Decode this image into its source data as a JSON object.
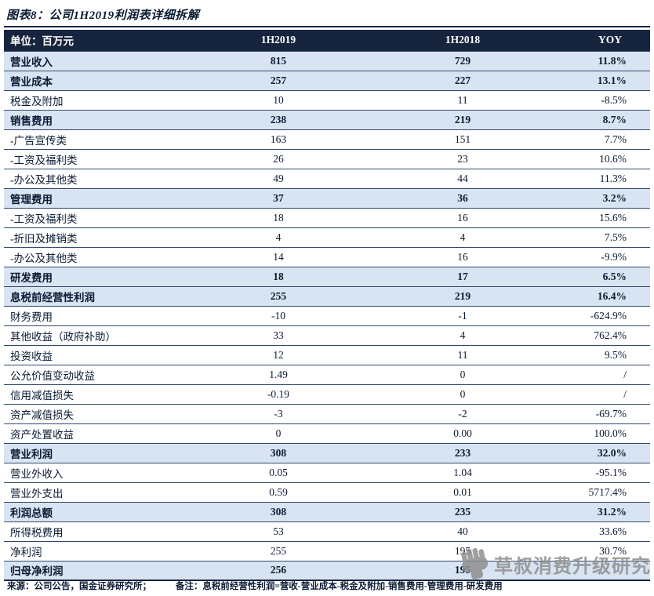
{
  "figure_title": "图表8：公司1H2019利润表详细拆解",
  "accent_colors": {
    "header_bg": "#16243E",
    "section_row_bg": "#D9E4F2",
    "border": "#31486E",
    "text": "#0A1A33",
    "watermark_gray": "#8F8F8F"
  },
  "chart_data": {
    "type": "table",
    "title": "图表8：公司1H2019利润表详细拆解",
    "columns": [
      "单位：百万元",
      "1H2019",
      "1H2018",
      "YOY"
    ],
    "rows": [
      {
        "label": "营业收入",
        "v1h2019": "815",
        "v1h2018": "729",
        "yoy": "11.8%",
        "bold": true
      },
      {
        "label": "营业成本",
        "v1h2019": "257",
        "v1h2018": "227",
        "yoy": "13.1%",
        "bold": true
      },
      {
        "label": "税金及附加",
        "v1h2019": "10",
        "v1h2018": "11",
        "yoy": "-8.5%",
        "bold": false
      },
      {
        "label": "销售费用",
        "v1h2019": "238",
        "v1h2018": "219",
        "yoy": "8.7%",
        "bold": true
      },
      {
        "label": "-广告宣传类",
        "v1h2019": "163",
        "v1h2018": "151",
        "yoy": "7.7%",
        "bold": false
      },
      {
        "label": "-工资及福利类",
        "v1h2019": "26",
        "v1h2018": "23",
        "yoy": "10.6%",
        "bold": false
      },
      {
        "label": "-办公及其他类",
        "v1h2019": "49",
        "v1h2018": "44",
        "yoy": "11.3%",
        "bold": false
      },
      {
        "label": "管理费用",
        "v1h2019": "37",
        "v1h2018": "36",
        "yoy": "3.2%",
        "bold": true
      },
      {
        "label": "-工资及福利类",
        "v1h2019": "18",
        "v1h2018": "16",
        "yoy": "15.6%",
        "bold": false
      },
      {
        "label": "-折旧及摊销类",
        "v1h2019": "4",
        "v1h2018": "4",
        "yoy": "7.5%",
        "bold": false
      },
      {
        "label": "-办公及其他类",
        "v1h2019": "14",
        "v1h2018": "16",
        "yoy": "-9.9%",
        "bold": false
      },
      {
        "label": "研发费用",
        "v1h2019": "18",
        "v1h2018": "17",
        "yoy": "6.5%",
        "bold": true
      },
      {
        "label": "息税前经营性利润",
        "v1h2019": "255",
        "v1h2018": "219",
        "yoy": "16.4%",
        "bold": true
      },
      {
        "label": "财务费用",
        "v1h2019": "-10",
        "v1h2018": "-1",
        "yoy": "-624.9%",
        "bold": false
      },
      {
        "label": "其他收益（政府补助）",
        "v1h2019": "33",
        "v1h2018": "4",
        "yoy": "762.4%",
        "bold": false
      },
      {
        "label": "投资收益",
        "v1h2019": "12",
        "v1h2018": "11",
        "yoy": "9.5%",
        "bold": false
      },
      {
        "label": "公允价值变动收益",
        "v1h2019": "1.49",
        "v1h2018": "0",
        "yoy": "/",
        "bold": false
      },
      {
        "label": "信用减值损失",
        "v1h2019": "-0.19",
        "v1h2018": "0",
        "yoy": "/",
        "bold": false
      },
      {
        "label": "资产减值损失",
        "v1h2019": "-3",
        "v1h2018": "-2",
        "yoy": "-69.7%",
        "bold": false
      },
      {
        "label": "资产处置收益",
        "v1h2019": "0",
        "v1h2018": "0.00",
        "yoy": "100.0%",
        "bold": false
      },
      {
        "label": "营业利润",
        "v1h2019": "308",
        "v1h2018": "233",
        "yoy": "32.0%",
        "bold": true
      },
      {
        "label": "营业外收入",
        "v1h2019": "0.05",
        "v1h2018": "1.04",
        "yoy": "-95.1%",
        "bold": false
      },
      {
        "label": "营业外支出",
        "v1h2019": "0.59",
        "v1h2018": "0.01",
        "yoy": "5717.4%",
        "bold": false
      },
      {
        "label": "利润总额",
        "v1h2019": "308",
        "v1h2018": "235",
        "yoy": "31.2%",
        "bold": true
      },
      {
        "label": "所得税费用",
        "v1h2019": "53",
        "v1h2018": "40",
        "yoy": "33.6%",
        "bold": false
      },
      {
        "label": "净利润",
        "v1h2019": "255",
        "v1h2018": "195",
        "yoy": "30.7%",
        "bold": false
      },
      {
        "label": "归母净利润",
        "v1h2019": "256",
        "v1h2018": "195",
        "yoy": "",
        "bold": true
      }
    ]
  },
  "footer": {
    "source": "来源：公司公告，国金证券研究所；",
    "note": "备注：息税前经营性利润=营收-营业成本-税金及附加-销售费用-管理费用-研发费用"
  },
  "watermark": {
    "text": "草叔消费升级研究",
    "icon": "fist-icon"
  }
}
